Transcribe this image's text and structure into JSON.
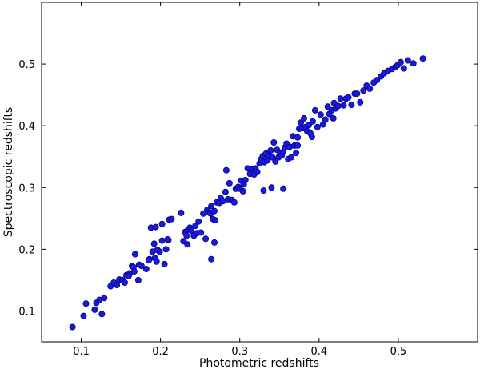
{
  "chart_data": {
    "type": "scatter",
    "title": "",
    "xlabel": "Photometric redshifts",
    "ylabel": "Spectroscopic redshifts",
    "xlim": [
      0.05,
      0.6
    ],
    "ylim": [
      0.05,
      0.6
    ],
    "xticks": [
      0.1,
      0.2,
      0.3,
      0.4,
      0.5
    ],
    "yticks": [
      0.1,
      0.2,
      0.3,
      0.4,
      0.5
    ],
    "xtick_labels": [
      "0.1",
      "0.2",
      "0.3",
      "0.4",
      "0.5"
    ],
    "ytick_labels": [
      "0.1",
      "0.2",
      "0.3",
      "0.4",
      "0.5"
    ],
    "grid": false,
    "marker_color": "#1a1adb",
    "marker_edge_color": "#000080",
    "series": [
      {
        "x": [
          0.089,
          0.103,
          0.106,
          0.117,
          0.119,
          0.123,
          0.126,
          0.129,
          0.137,
          0.141,
          0.145,
          0.148,
          0.152,
          0.155,
          0.157,
          0.161,
          0.164,
          0.166,
          0.168,
          0.172,
          0.176,
          0.182,
          0.186,
          0.188,
          0.19,
          0.193,
          0.195,
          0.196,
          0.199,
          0.202,
          0.205,
          0.207,
          0.21,
          0.211,
          0.16,
          0.167,
          0.173,
          0.185,
          0.192,
          0.194,
          0.202,
          0.209,
          0.214,
          0.226,
          0.229,
          0.231,
          0.233,
          0.235,
          0.237,
          0.239,
          0.242,
          0.244,
          0.246,
          0.248,
          0.251,
          0.254,
          0.257,
          0.259,
          0.261,
          0.263,
          0.264,
          0.266,
          0.268,
          0.269,
          0.271,
          0.274,
          0.276,
          0.279,
          0.282,
          0.285,
          0.287,
          0.29,
          0.293,
          0.295,
          0.298,
          0.3,
          0.302,
          0.304,
          0.305,
          0.307,
          0.31,
          0.313,
          0.316,
          0.318,
          0.32,
          0.322,
          0.325,
          0.327,
          0.329,
          0.331,
          0.333,
          0.335,
          0.337,
          0.339,
          0.341,
          0.343,
          0.345,
          0.347,
          0.349,
          0.351,
          0.353,
          0.355,
          0.357,
          0.359,
          0.361,
          0.363,
          0.365,
          0.367,
          0.369,
          0.371,
          0.373,
          0.375,
          0.377,
          0.379,
          0.381,
          0.383,
          0.385,
          0.387,
          0.389,
          0.392,
          0.395,
          0.398,
          0.402,
          0.405,
          0.408,
          0.411,
          0.413,
          0.416,
          0.419,
          0.421,
          0.424,
          0.427,
          0.431,
          0.434,
          0.437,
          0.441,
          0.445,
          0.448,
          0.452,
          0.456,
          0.46,
          0.464,
          0.469,
          0.473,
          0.478,
          0.482,
          0.487,
          0.492,
          0.496,
          0.499,
          0.503,
          0.507,
          0.512,
          0.519,
          0.531,
          0.264,
          0.268,
          0.234,
          0.283,
          0.33,
          0.34,
          0.355,
          0.373,
          0.391,
          0.418
        ],
        "y": [
          0.074,
          0.092,
          0.112,
          0.102,
          0.113,
          0.118,
          0.095,
          0.121,
          0.14,
          0.146,
          0.142,
          0.151,
          0.15,
          0.146,
          0.158,
          0.161,
          0.173,
          0.171,
          0.192,
          0.15,
          0.173,
          0.168,
          0.184,
          0.235,
          0.196,
          0.186,
          0.18,
          0.199,
          0.196,
          0.214,
          0.176,
          0.2,
          0.215,
          0.248,
          0.157,
          0.164,
          0.175,
          0.182,
          0.209,
          0.236,
          0.241,
          0.216,
          0.249,
          0.259,
          0.213,
          0.228,
          0.222,
          0.232,
          0.235,
          0.23,
          0.222,
          0.238,
          0.226,
          0.245,
          0.227,
          0.258,
          0.217,
          0.264,
          0.26,
          0.258,
          0.27,
          0.249,
          0.262,
          0.247,
          0.276,
          0.275,
          0.283,
          0.278,
          0.293,
          0.281,
          0.307,
          0.28,
          0.276,
          0.298,
          0.301,
          0.298,
          0.311,
          0.294,
          0.305,
          0.312,
          0.331,
          0.322,
          0.33,
          0.321,
          0.331,
          0.325,
          0.339,
          0.346,
          0.351,
          0.341,
          0.355,
          0.344,
          0.351,
          0.36,
          0.349,
          0.373,
          0.342,
          0.361,
          0.349,
          0.356,
          0.352,
          0.358,
          0.365,
          0.371,
          0.346,
          0.366,
          0.349,
          0.383,
          0.368,
          0.356,
          0.381,
          0.395,
          0.405,
          0.396,
          0.412,
          0.398,
          0.391,
          0.401,
          0.388,
          0.407,
          0.425,
          0.398,
          0.418,
          0.402,
          0.41,
          0.431,
          0.419,
          0.425,
          0.437,
          0.428,
          0.432,
          0.444,
          0.433,
          0.444,
          0.446,
          0.434,
          0.452,
          0.452,
          0.438,
          0.457,
          0.465,
          0.46,
          0.47,
          0.474,
          0.48,
          0.485,
          0.489,
          0.492,
          0.495,
          0.498,
          0.503,
          0.493,
          0.506,
          0.501,
          0.509,
          0.184,
          0.211,
          0.208,
          0.328,
          0.295,
          0.3,
          0.298,
          0.368,
          0.382,
          0.412
        ]
      }
    ]
  }
}
